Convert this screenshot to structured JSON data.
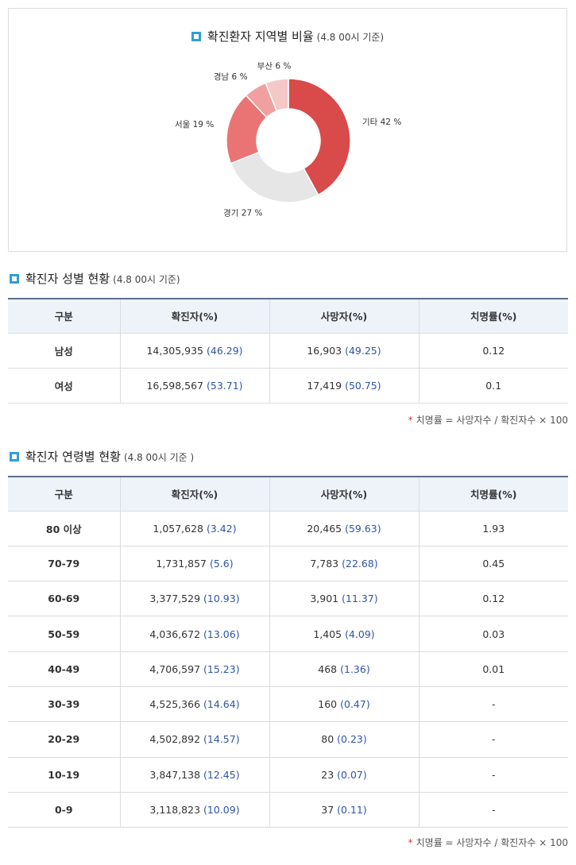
{
  "region_chart": {
    "title": "확진환자 지역별 비율",
    "subtitle": "(4.8 00시 기준)"
  },
  "chart_data": {
    "type": "pie",
    "title": "확진환자 지역별 비율",
    "subtitle": "(4.8 00시 기준)",
    "unit": "%",
    "categories": [
      "기타",
      "경기",
      "서울",
      "경남",
      "부산"
    ],
    "values": [
      42,
      27,
      19,
      6,
      6
    ],
    "labels": [
      "기타 42 %",
      "경기 27 %",
      "서울 19 %",
      "경남 6 %",
      "부산 6 %"
    ],
    "colors": [
      "#d94a4a",
      "#e6e6e6",
      "#ea7474",
      "#f0a0a0",
      "#f5c8c8"
    ]
  },
  "gender_section": {
    "title": "확진자 성별 현황",
    "subtitle": "(4.8 00시 기준)",
    "columns": [
      "구분",
      "확진자(%)",
      "사망자(%)",
      "치명률(%)"
    ],
    "rows": [
      {
        "label": "남성",
        "cases": "14,305,935",
        "cases_pct": "(46.29)",
        "deaths": "16,903",
        "deaths_pct": "(49.25)",
        "rate": "0.12"
      },
      {
        "label": "여성",
        "cases": "16,598,567",
        "cases_pct": "(53.71)",
        "deaths": "17,419",
        "deaths_pct": "(50.75)",
        "rate": "0.1"
      }
    ],
    "note": "치명률 = 사망자수 / 확진자수 × 100"
  },
  "age_section": {
    "title": "확진자 연령별 현황",
    "subtitle": "(4.8 00시 기준 )",
    "columns": [
      "구분",
      "확진자(%)",
      "사망자(%)",
      "치명률(%)"
    ],
    "rows": [
      {
        "label": "80 이상",
        "cases": "1,057,628",
        "cases_pct": "(3.42)",
        "deaths": "20,465",
        "deaths_pct": "(59.63)",
        "rate": "1.93"
      },
      {
        "label": "70-79",
        "cases": "1,731,857",
        "cases_pct": "(5.6)",
        "deaths": "7,783",
        "deaths_pct": "(22.68)",
        "rate": "0.45"
      },
      {
        "label": "60-69",
        "cases": "3,377,529",
        "cases_pct": "(10.93)",
        "deaths": "3,901",
        "deaths_pct": "(11.37)",
        "rate": "0.12"
      },
      {
        "label": "50-59",
        "cases": "4,036,672",
        "cases_pct": "(13.06)",
        "deaths": "1,405",
        "deaths_pct": "(4.09)",
        "rate": "0.03"
      },
      {
        "label": "40-49",
        "cases": "4,706,597",
        "cases_pct": "(15.23)",
        "deaths": "468",
        "deaths_pct": "(1.36)",
        "rate": "0.01"
      },
      {
        "label": "30-39",
        "cases": "4,525,366",
        "cases_pct": "(14.64)",
        "deaths": "160",
        "deaths_pct": "(0.47)",
        "rate": "-"
      },
      {
        "label": "20-29",
        "cases": "4,502,892",
        "cases_pct": "(14.57)",
        "deaths": "80",
        "deaths_pct": "(0.23)",
        "rate": "-"
      },
      {
        "label": "10-19",
        "cases": "3,847,138",
        "cases_pct": "(12.45)",
        "deaths": "23",
        "deaths_pct": "(0.07)",
        "rate": "-"
      },
      {
        "label": "0-9",
        "cases": "3,118,823",
        "cases_pct": "(10.09)",
        "deaths": "37",
        "deaths_pct": "(0.11)",
        "rate": "-"
      }
    ],
    "note": "치명률 = 사망자수 / 확진자수 × 100"
  }
}
